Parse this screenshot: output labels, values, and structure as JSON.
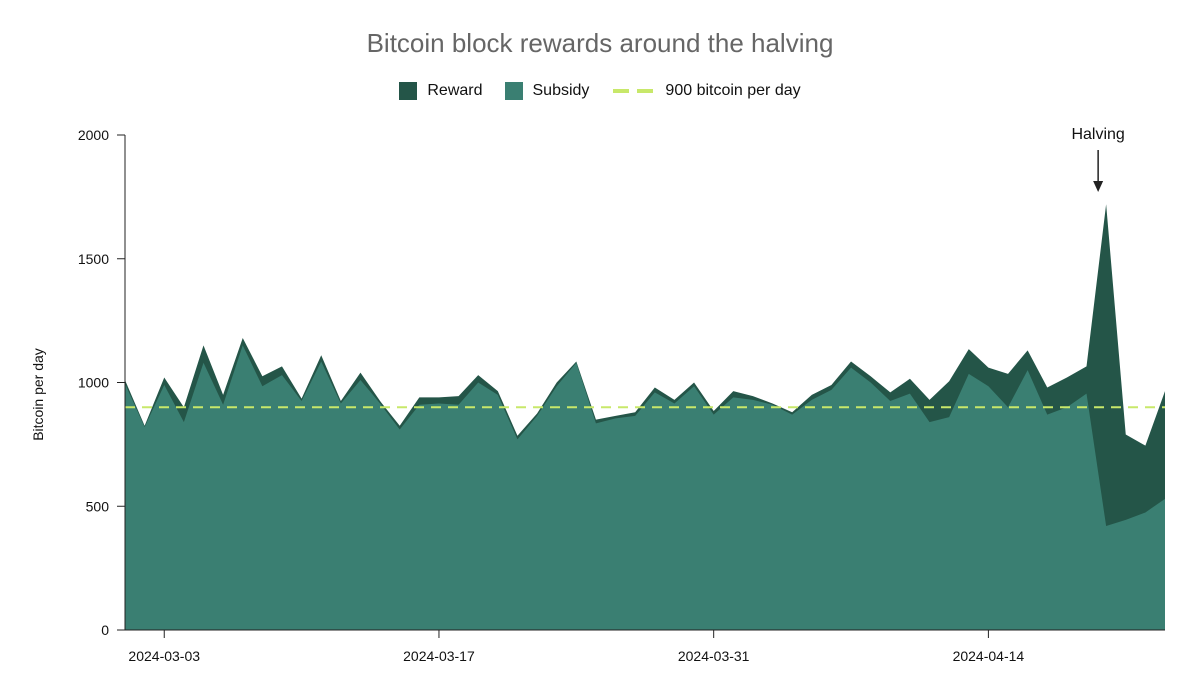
{
  "chart_data": {
    "type": "area",
    "title": "Bitcoin block rewards around the halving",
    "xlabel": "",
    "ylabel": "Bitcoin per day",
    "ylim": [
      0,
      2000
    ],
    "yticks": [
      0,
      500,
      1000,
      1500,
      2000
    ],
    "xticks": [
      "2024-03-03",
      "2024-03-17",
      "2024-03-31",
      "2024-04-14"
    ],
    "x": [
      "2024-03-01",
      "2024-03-02",
      "2024-03-03",
      "2024-03-04",
      "2024-03-05",
      "2024-03-06",
      "2024-03-07",
      "2024-03-08",
      "2024-03-09",
      "2024-03-10",
      "2024-03-11",
      "2024-03-12",
      "2024-03-13",
      "2024-03-14",
      "2024-03-15",
      "2024-03-16",
      "2024-03-17",
      "2024-03-18",
      "2024-03-19",
      "2024-03-20",
      "2024-03-21",
      "2024-03-22",
      "2024-03-23",
      "2024-03-24",
      "2024-03-25",
      "2024-03-26",
      "2024-03-27",
      "2024-03-28",
      "2024-03-29",
      "2024-03-30",
      "2024-03-31",
      "2024-04-01",
      "2024-04-02",
      "2024-04-03",
      "2024-04-04",
      "2024-04-05",
      "2024-04-06",
      "2024-04-07",
      "2024-04-08",
      "2024-04-09",
      "2024-04-10",
      "2024-04-11",
      "2024-04-12",
      "2024-04-13",
      "2024-04-14",
      "2024-04-15",
      "2024-04-16",
      "2024-04-17",
      "2024-04-18",
      "2024-04-19",
      "2024-04-20",
      "2024-04-21",
      "2024-04-22",
      "2024-04-23"
    ],
    "series": [
      {
        "name": "Reward",
        "color": "#245548",
        "values": [
          1010,
          825,
          1020,
          900,
          1150,
          950,
          1180,
          1025,
          1065,
          935,
          1110,
          925,
          1040,
          925,
          825,
          940,
          940,
          945,
          1030,
          965,
          785,
          875,
          1000,
          1085,
          850,
          865,
          880,
          980,
          930,
          1000,
          885,
          965,
          945,
          915,
          880,
          950,
          990,
          1085,
          1025,
          960,
          1015,
          930,
          1005,
          1135,
          1060,
          1035,
          1130,
          980,
          1020,
          1065,
          1720,
          790,
          745,
          965
        ]
      },
      {
        "name": "Subsidy",
        "color": "#3a7f72",
        "values": [
          995,
          820,
          990,
          840,
          1080,
          910,
          1150,
          985,
          1030,
          925,
          1085,
          915,
          1010,
          915,
          810,
          910,
          915,
          910,
          1000,
          950,
          770,
          865,
          985,
          1080,
          835,
          855,
          865,
          960,
          915,
          985,
          870,
          940,
          930,
          910,
          870,
          930,
          970,
          1060,
          1000,
          925,
          955,
          840,
          860,
          1035,
          985,
          900,
          1050,
          870,
          900,
          955,
          420,
          445,
          475,
          530
        ]
      }
    ],
    "reference_line": {
      "name": "900 bitcoin per day",
      "value": 900,
      "color": "#c8e86a"
    },
    "annotation": {
      "text": "Halving",
      "date": "2024-04-20"
    },
    "legend_position": "top-center",
    "grid": false
  }
}
